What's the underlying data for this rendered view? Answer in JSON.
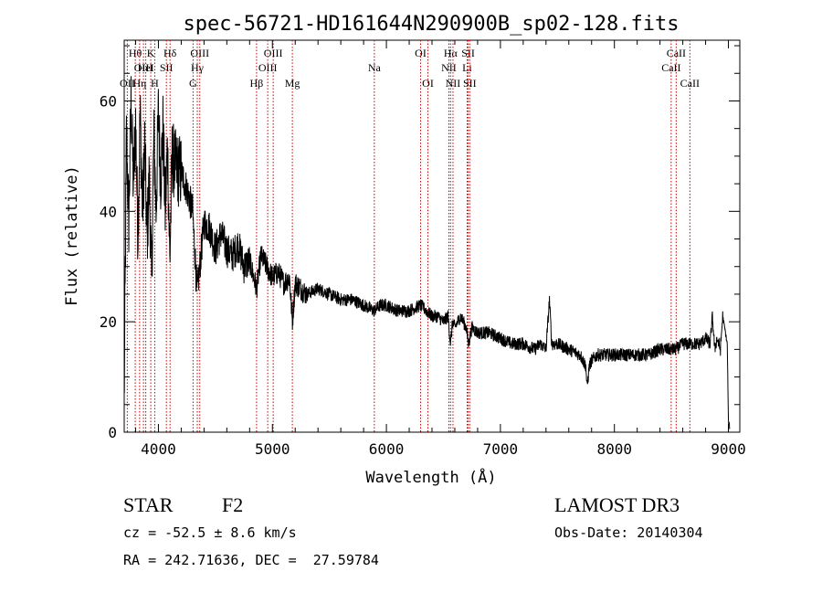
{
  "chart_data": {
    "type": "line",
    "title": "spec-56721-HD161644N290900B_sp02-128.fits",
    "xlabel": "Wavelength (Å)",
    "ylabel": "Flux (relative)",
    "xlim": [
      3700,
      9100
    ],
    "ylim": [
      0,
      71
    ],
    "xticks": [
      4000,
      5000,
      6000,
      7000,
      8000,
      9000
    ],
    "yticks": [
      0,
      20,
      40,
      60
    ],
    "grid": false,
    "line_color": "#000000",
    "marker_color": "#cc0000",
    "series": [
      {
        "x": [
          3700,
          3720,
          3740,
          3760,
          3780,
          3800,
          3820,
          3840,
          3860,
          3880,
          3900,
          3920,
          3940,
          3960,
          3980,
          4000,
          4020,
          4040,
          4060,
          4080,
          4100,
          4120,
          4150,
          4200,
          4250,
          4300,
          4340,
          4400,
          4450,
          4500,
          4550,
          4600,
          4650,
          4700,
          4750,
          4800,
          4861,
          4900,
          4950,
          5000,
          5050,
          5100,
          5150,
          5175,
          5200,
          5300,
          5400,
          5500,
          5600,
          5700,
          5800,
          5890,
          5950,
          6000,
          6100,
          6200,
          6300,
          6400,
          6450,
          6500,
          6540,
          6563,
          6580,
          6600,
          6650,
          6700,
          6720,
          6750,
          6800,
          6900,
          7000,
          7100,
          7200,
          7300,
          7350,
          7400,
          7430,
          7450,
          7500,
          7600,
          7700,
          7750,
          7760,
          7780,
          7800,
          7850,
          7900,
          8000,
          8100,
          8200,
          8300,
          8400,
          8500,
          8540,
          8600,
          8660,
          8700,
          8750,
          8800,
          8840,
          8860,
          8880,
          8900,
          8930,
          8950,
          8990,
          9000,
          9010
        ],
        "y": [
          5,
          54,
          38,
          60,
          45,
          56,
          36,
          58,
          40,
          52,
          35,
          46,
          27,
          54,
          40,
          58,
          46,
          55,
          40,
          52,
          31,
          50,
          48,
          47,
          44,
          40,
          25,
          38,
          37,
          33,
          36,
          33,
          32,
          34,
          30,
          31,
          26,
          32,
          30,
          28,
          29,
          27,
          28,
          20,
          27,
          25,
          26,
          25,
          24,
          24,
          23,
          22,
          23,
          23,
          22,
          22,
          23,
          21,
          21,
          20,
          21,
          16,
          20,
          19,
          21,
          19,
          16,
          19,
          18,
          18,
          17,
          16,
          16,
          15,
          16,
          15,
          24,
          16,
          16,
          15,
          14,
          12,
          8,
          12,
          13,
          14,
          14,
          14,
          14,
          14,
          14,
          15,
          15,
          15,
          16,
          16,
          16,
          16,
          17,
          16,
          21,
          15,
          17,
          15,
          21,
          16,
          2,
          1
        ]
      }
    ],
    "lines": [
      {
        "w": 3727,
        "top": "OII",
        "rows": [
          3
        ]
      },
      {
        "w": 3797,
        "top": "Hθ",
        "rows": [
          1
        ]
      },
      {
        "w": 3835,
        "top": "Hη",
        "rows": [
          3
        ]
      },
      {
        "w": 3869,
        "top": "OIII",
        "rows": [
          2
        ]
      },
      {
        "w": 3889,
        "top": "HeI",
        "rows": [
          2
        ]
      },
      {
        "w": 3933,
        "top": "K",
        "rows": [
          1
        ]
      },
      {
        "w": 3968,
        "top": "H",
        "rows": [
          3
        ]
      },
      {
        "w": 4070,
        "top": "SII",
        "rows": [
          2
        ]
      },
      {
        "w": 4102,
        "top": "Hδ",
        "rows": [
          1
        ]
      },
      {
        "w": 4304,
        "top": "G",
        "rows": [
          3
        ]
      },
      {
        "w": 4341,
        "top": "Hγ",
        "rows": [
          2
        ]
      },
      {
        "w": 4363,
        "top": "OIII",
        "rows": [
          1
        ]
      },
      {
        "w": 4861,
        "top": "Hβ",
        "rows": [
          3
        ]
      },
      {
        "w": 4959,
        "top": "OIII",
        "rows": [
          2
        ]
      },
      {
        "w": 5007,
        "top": "OIII",
        "rows": [
          1
        ]
      },
      {
        "w": 5175,
        "top": "Mg",
        "rows": [
          3
        ]
      },
      {
        "w": 5894,
        "top": "Na",
        "rows": [
          2
        ]
      },
      {
        "w": 6300,
        "top": "OI",
        "rows": [
          1
        ]
      },
      {
        "w": 6364,
        "top": "OI",
        "rows": [
          3
        ]
      },
      {
        "w": 6548,
        "top": "NII",
        "rows": [
          2
        ]
      },
      {
        "w": 6563,
        "top": "Hα",
        "rows": [
          1
        ]
      },
      {
        "w": 6584,
        "top": "NII",
        "rows": [
          3
        ]
      },
      {
        "w": 6708,
        "top": "Li",
        "rows": [
          2
        ]
      },
      {
        "w": 6717,
        "top": "SII",
        "rows": [
          1
        ]
      },
      {
        "w": 6731,
        "top": "SII",
        "rows": [
          3
        ]
      },
      {
        "w": 8498,
        "top": "CaII",
        "rows": [
          2
        ]
      },
      {
        "w": 8542,
        "top": "CaII",
        "rows": [
          1
        ]
      },
      {
        "w": 8662,
        "top": "CaII",
        "rows": [
          3
        ]
      }
    ]
  },
  "info": {
    "object_type": "STAR",
    "subclass": "F2",
    "survey": "LAMOST DR3",
    "redshift": "cz = -52.5 ± 8.6 km/s",
    "obs_date": "Obs-Date: 20140304",
    "coords": "RA = 242.71636, DEC =  27.59784"
  }
}
